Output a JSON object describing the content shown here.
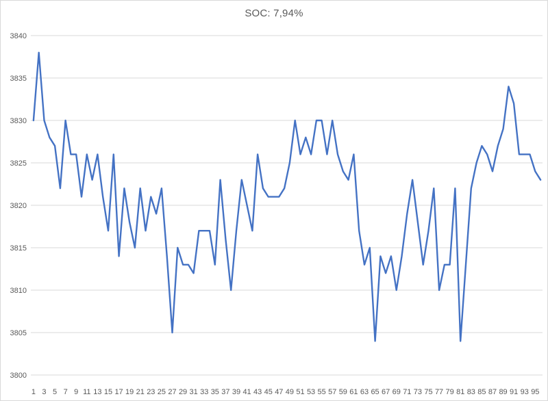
{
  "chart_data": {
    "type": "line",
    "title": "SOC: 7,94%",
    "subtitle": "",
    "xlabel": "",
    "ylabel": "",
    "series_name": "SOC",
    "legend_position": "none",
    "grid": "horizontal",
    "ylim": [
      3800,
      3840
    ],
    "ytick_step": 5,
    "ytick_labels": [
      "3800",
      "3805",
      "3810",
      "3815",
      "3820",
      "3825",
      "3830",
      "3835",
      "3840"
    ],
    "xtick_labels": [
      "1",
      "3",
      "5",
      "7",
      "9",
      "11",
      "13",
      "15",
      "17",
      "19",
      "21",
      "23",
      "25",
      "27",
      "29",
      "31",
      "33",
      "35",
      "37",
      "39",
      "41",
      "43",
      "45",
      "47",
      "49",
      "51",
      "53",
      "55",
      "57",
      "59",
      "61",
      "63",
      "65",
      "67",
      "69",
      "71",
      "73",
      "75",
      "77",
      "79",
      "81",
      "83",
      "85",
      "87",
      "89",
      "91",
      "93",
      "95"
    ],
    "x": [
      1,
      2,
      3,
      4,
      5,
      6,
      7,
      8,
      9,
      10,
      11,
      12,
      13,
      14,
      15,
      16,
      17,
      18,
      19,
      20,
      21,
      22,
      23,
      24,
      25,
      26,
      27,
      28,
      29,
      30,
      31,
      32,
      33,
      34,
      35,
      36,
      37,
      38,
      39,
      40,
      41,
      42,
      43,
      44,
      45,
      46,
      47,
      48,
      49,
      50,
      51,
      52,
      53,
      54,
      55,
      56,
      57,
      58,
      59,
      60,
      61,
      62,
      63,
      64,
      65,
      66,
      67,
      68,
      69,
      70,
      71,
      72,
      73,
      74,
      75,
      76,
      77,
      78,
      79,
      80,
      81,
      82,
      83,
      84,
      85,
      86,
      87,
      88,
      89,
      90,
      91,
      92,
      93,
      94,
      95,
      96
    ],
    "values": [
      3830,
      3838,
      3830,
      3828,
      3827,
      3822,
      3830,
      3826,
      3826,
      3821,
      3826,
      3823,
      3826,
      3821,
      3817,
      3826,
      3814,
      3822,
      3818,
      3815,
      3822,
      3817,
      3821,
      3819,
      3822,
      3814,
      3805,
      3815,
      3813,
      3813,
      3812,
      3817,
      3817,
      3817,
      3813,
      3823,
      3816,
      3810,
      3817,
      3823,
      3820,
      3817,
      3826,
      3822,
      3821,
      3821,
      3821,
      3822,
      3825,
      3830,
      3826,
      3828,
      3826,
      3830,
      3830,
      3826,
      3830,
      3826,
      3824,
      3823,
      3826,
      3817,
      3813,
      3815,
      3804,
      3814,
      3812,
      3814,
      3810,
      3814,
      3819,
      3823,
      3818,
      3813,
      3817,
      3822,
      3810,
      3813,
      3813,
      3822,
      3804,
      3813,
      3822,
      3825,
      3827,
      3826,
      3824,
      3827,
      3829,
      3834,
      3832,
      3826,
      3826,
      3826,
      3824,
      3823
    ],
    "line_color": "#4472C4",
    "title_color": "#595959",
    "tick_label_color": "#595959",
    "gridline_color": "#d9d9d9",
    "background_color": "#ffffff"
  }
}
